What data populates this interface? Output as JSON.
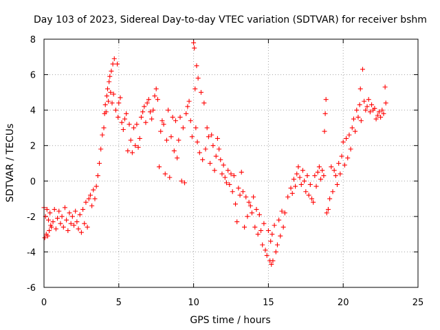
{
  "chart_data": {
    "type": "scatter",
    "title": "Day 103 of 2023, Sidereal Day-to-day VTEC variation (SDTVAR) for receiver bshm",
    "xlabel": "GPS time / hours",
    "ylabel": "SDTVAR / TECUs",
    "xlim": [
      0,
      25
    ],
    "ylim": [
      -6,
      8
    ],
    "xticks": [
      "0",
      "5",
      "10",
      "15",
      "20",
      "25"
    ],
    "yticks": [
      "-6",
      "-4",
      "-2",
      "0",
      "2",
      "4",
      "6",
      "8"
    ],
    "grid": true,
    "marker": "+",
    "color": "#ff0000",
    "series": [
      {
        "name": "bshm",
        "points": [
          [
            0.0,
            -1.5
          ],
          [
            0.05,
            -3.2
          ],
          [
            0.1,
            -2.0
          ],
          [
            0.15,
            -3.0
          ],
          [
            0.2,
            -1.6
          ],
          [
            0.25,
            -3.1
          ],
          [
            0.3,
            -2.2
          ],
          [
            0.35,
            -2.8
          ],
          [
            0.4,
            -1.8
          ],
          [
            0.45,
            -2.5
          ],
          [
            0.5,
            -2.6
          ],
          [
            0.6,
            -2.3
          ],
          [
            0.7,
            -1.6
          ],
          [
            0.8,
            -2.7
          ],
          [
            0.9,
            -2.1
          ],
          [
            1.0,
            -1.7
          ],
          [
            1.1,
            -2.4
          ],
          [
            1.2,
            -2.0
          ],
          [
            1.3,
            -2.6
          ],
          [
            1.4,
            -1.5
          ],
          [
            1.5,
            -2.2
          ],
          [
            1.6,
            -2.8
          ],
          [
            1.7,
            -1.8
          ],
          [
            1.8,
            -2.4
          ],
          [
            1.9,
            -2.0
          ],
          [
            2.0,
            -2.5
          ],
          [
            2.1,
            -1.7
          ],
          [
            2.2,
            -2.3
          ],
          [
            2.3,
            -2.7
          ],
          [
            2.4,
            -1.9
          ],
          [
            2.5,
            -2.9
          ],
          [
            2.6,
            -1.6
          ],
          [
            2.7,
            -2.4
          ],
          [
            2.8,
            -1.2
          ],
          [
            2.9,
            -2.6
          ],
          [
            3.0,
            -1.0
          ],
          [
            3.1,
            -0.8
          ],
          [
            3.2,
            -1.4
          ],
          [
            3.3,
            -0.5
          ],
          [
            3.4,
            -1.0
          ],
          [
            3.5,
            -0.3
          ],
          [
            3.6,
            0.3
          ],
          [
            3.7,
            1.0
          ],
          [
            3.8,
            1.8
          ],
          [
            3.9,
            2.6
          ],
          [
            4.0,
            3.0
          ],
          [
            4.05,
            3.8
          ],
          [
            4.1,
            4.3
          ],
          [
            4.15,
            3.9
          ],
          [
            4.2,
            4.8
          ],
          [
            4.25,
            5.2
          ],
          [
            4.3,
            4.5
          ],
          [
            4.35,
            5.6
          ],
          [
            4.4,
            5.9
          ],
          [
            4.45,
            5.0
          ],
          [
            4.5,
            6.2
          ],
          [
            4.55,
            4.4
          ],
          [
            4.6,
            6.6
          ],
          [
            4.65,
            4.9
          ],
          [
            4.7,
            6.9
          ],
          [
            4.8,
            4.0
          ],
          [
            4.9,
            6.6
          ],
          [
            4.95,
            3.6
          ],
          [
            5.0,
            4.4
          ],
          [
            5.1,
            4.7
          ],
          [
            5.2,
            3.3
          ],
          [
            5.3,
            2.9
          ],
          [
            5.4,
            3.5
          ],
          [
            5.5,
            3.8
          ],
          [
            5.6,
            1.7
          ],
          [
            5.7,
            3.2
          ],
          [
            5.8,
            2.3
          ],
          [
            5.9,
            1.6
          ],
          [
            6.0,
            3.0
          ],
          [
            6.1,
            2.0
          ],
          [
            6.2,
            3.2
          ],
          [
            6.3,
            1.9
          ],
          [
            6.4,
            2.4
          ],
          [
            6.5,
            3.6
          ],
          [
            6.6,
            3.9
          ],
          [
            6.7,
            4.2
          ],
          [
            6.8,
            3.3
          ],
          [
            6.9,
            4.4
          ],
          [
            7.0,
            4.6
          ],
          [
            7.1,
            3.9
          ],
          [
            7.2,
            3.5
          ],
          [
            7.3,
            4.0
          ],
          [
            7.4,
            4.8
          ],
          [
            7.5,
            5.2
          ],
          [
            7.6,
            4.6
          ],
          [
            7.7,
            0.8
          ],
          [
            7.8,
            2.8
          ],
          [
            7.9,
            3.4
          ],
          [
            8.0,
            3.2
          ],
          [
            8.1,
            0.4
          ],
          [
            8.2,
            2.3
          ],
          [
            8.3,
            4.0
          ],
          [
            8.4,
            0.2
          ],
          [
            8.5,
            2.5
          ],
          [
            8.6,
            3.6
          ],
          [
            8.7,
            1.7
          ],
          [
            8.8,
            3.4
          ],
          [
            8.9,
            1.3
          ],
          [
            9.0,
            2.3
          ],
          [
            9.1,
            3.6
          ],
          [
            9.2,
            0.0
          ],
          [
            9.3,
            3.0
          ],
          [
            9.4,
            -0.1
          ],
          [
            9.5,
            3.8
          ],
          [
            9.6,
            4.2
          ],
          [
            9.7,
            4.5
          ],
          [
            9.8,
            3.4
          ],
          [
            9.9,
            2.5
          ],
          [
            10.0,
            7.8
          ],
          [
            10.05,
            7.5
          ],
          [
            10.1,
            5.2
          ],
          [
            10.15,
            3.0
          ],
          [
            10.2,
            6.5
          ],
          [
            10.25,
            2.2
          ],
          [
            10.3,
            5.8
          ],
          [
            10.4,
            1.6
          ],
          [
            10.5,
            5.0
          ],
          [
            10.6,
            1.2
          ],
          [
            10.7,
            4.4
          ],
          [
            10.8,
            1.8
          ],
          [
            10.9,
            3.0
          ],
          [
            11.0,
            2.5
          ],
          [
            11.1,
            1.0
          ],
          [
            11.2,
            2.6
          ],
          [
            11.3,
            2.0
          ],
          [
            11.4,
            0.6
          ],
          [
            11.5,
            1.4
          ],
          [
            11.6,
            2.4
          ],
          [
            11.7,
            1.8
          ],
          [
            11.8,
            1.2
          ],
          [
            11.9,
            0.4
          ],
          [
            12.0,
            0.9
          ],
          [
            12.1,
            0.2
          ],
          [
            12.2,
            -0.1
          ],
          [
            12.3,
            0.6
          ],
          [
            12.4,
            -0.2
          ],
          [
            12.5,
            0.4
          ],
          [
            12.6,
            -0.6
          ],
          [
            12.7,
            0.3
          ],
          [
            12.8,
            -1.3
          ],
          [
            12.9,
            -2.3
          ],
          [
            13.0,
            -0.4
          ],
          [
            13.1,
            -0.8
          ],
          [
            13.2,
            0.5
          ],
          [
            13.3,
            -0.6
          ],
          [
            13.4,
            -2.6
          ],
          [
            13.5,
            -0.9
          ],
          [
            13.6,
            -2.0
          ],
          [
            13.7,
            -1.2
          ],
          [
            13.8,
            -1.4
          ],
          [
            13.9,
            -1.8
          ],
          [
            14.0,
            -0.9
          ],
          [
            14.1,
            -2.6
          ],
          [
            14.2,
            -1.6
          ],
          [
            14.3,
            -3.0
          ],
          [
            14.4,
            -1.9
          ],
          [
            14.5,
            -2.8
          ],
          [
            14.6,
            -3.6
          ],
          [
            14.7,
            -2.4
          ],
          [
            14.8,
            -3.9
          ],
          [
            14.9,
            -4.2
          ],
          [
            15.0,
            -2.8
          ],
          [
            15.1,
            -4.5
          ],
          [
            15.15,
            -3.4
          ],
          [
            15.2,
            -4.7
          ],
          [
            15.25,
            -3.0
          ],
          [
            15.3,
            -4.5
          ],
          [
            15.4,
            -2.5
          ],
          [
            15.5,
            -4.0
          ],
          [
            15.6,
            -3.6
          ],
          [
            15.7,
            -2.2
          ],
          [
            15.8,
            -3.1
          ],
          [
            15.9,
            -1.7
          ],
          [
            16.0,
            -2.6
          ],
          [
            16.1,
            -1.8
          ],
          [
            16.3,
            -0.9
          ],
          [
            16.5,
            -0.4
          ],
          [
            16.6,
            -0.7
          ],
          [
            16.7,
            0.1
          ],
          [
            16.8,
            -0.3
          ],
          [
            16.9,
            0.4
          ],
          [
            17.0,
            0.8
          ],
          [
            17.1,
            0.2
          ],
          [
            17.2,
            -0.2
          ],
          [
            17.3,
            0.6
          ],
          [
            17.4,
            0.0
          ],
          [
            17.5,
            -0.6
          ],
          [
            17.6,
            0.3
          ],
          [
            17.7,
            -0.8
          ],
          [
            17.8,
            -0.2
          ],
          [
            17.9,
            -1.0
          ],
          [
            18.0,
            -1.2
          ],
          [
            18.1,
            0.3
          ],
          [
            18.2,
            -0.3
          ],
          [
            18.3,
            0.5
          ],
          [
            18.4,
            0.8
          ],
          [
            18.5,
            0.1
          ],
          [
            18.6,
            0.6
          ],
          [
            18.7,
            0.3
          ],
          [
            18.75,
            2.8
          ],
          [
            18.8,
            3.8
          ],
          [
            18.85,
            4.6
          ],
          [
            18.9,
            -1.8
          ],
          [
            19.0,
            -1.6
          ],
          [
            19.1,
            -1.0
          ],
          [
            19.2,
            0.8
          ],
          [
            19.3,
            -0.6
          ],
          [
            19.4,
            0.6
          ],
          [
            19.5,
            0.3
          ],
          [
            19.6,
            -0.2
          ],
          [
            19.7,
            1.0
          ],
          [
            19.8,
            0.4
          ],
          [
            19.9,
            1.4
          ],
          [
            20.0,
            2.2
          ],
          [
            20.1,
            0.9
          ],
          [
            20.2,
            2.4
          ],
          [
            20.3,
            1.3
          ],
          [
            20.4,
            2.6
          ],
          [
            20.5,
            1.8
          ],
          [
            20.6,
            3.0
          ],
          [
            20.7,
            3.5
          ],
          [
            20.8,
            2.8
          ],
          [
            20.9,
            4.0
          ],
          [
            21.0,
            3.6
          ],
          [
            21.1,
            4.3
          ],
          [
            21.15,
            5.2
          ],
          [
            21.2,
            3.4
          ],
          [
            21.3,
            6.3
          ],
          [
            21.4,
            4.5
          ],
          [
            21.5,
            4.0
          ],
          [
            21.6,
            4.2
          ],
          [
            21.7,
            4.6
          ],
          [
            21.8,
            3.9
          ],
          [
            21.9,
            4.3
          ],
          [
            22.0,
            4.0
          ],
          [
            22.1,
            4.1
          ],
          [
            22.2,
            3.5
          ],
          [
            22.3,
            3.7
          ],
          [
            22.4,
            3.9
          ],
          [
            22.5,
            3.6
          ],
          [
            22.6,
            4.0
          ],
          [
            22.7,
            3.8
          ],
          [
            22.8,
            5.3
          ],
          [
            22.85,
            4.4
          ]
        ]
      }
    ]
  }
}
